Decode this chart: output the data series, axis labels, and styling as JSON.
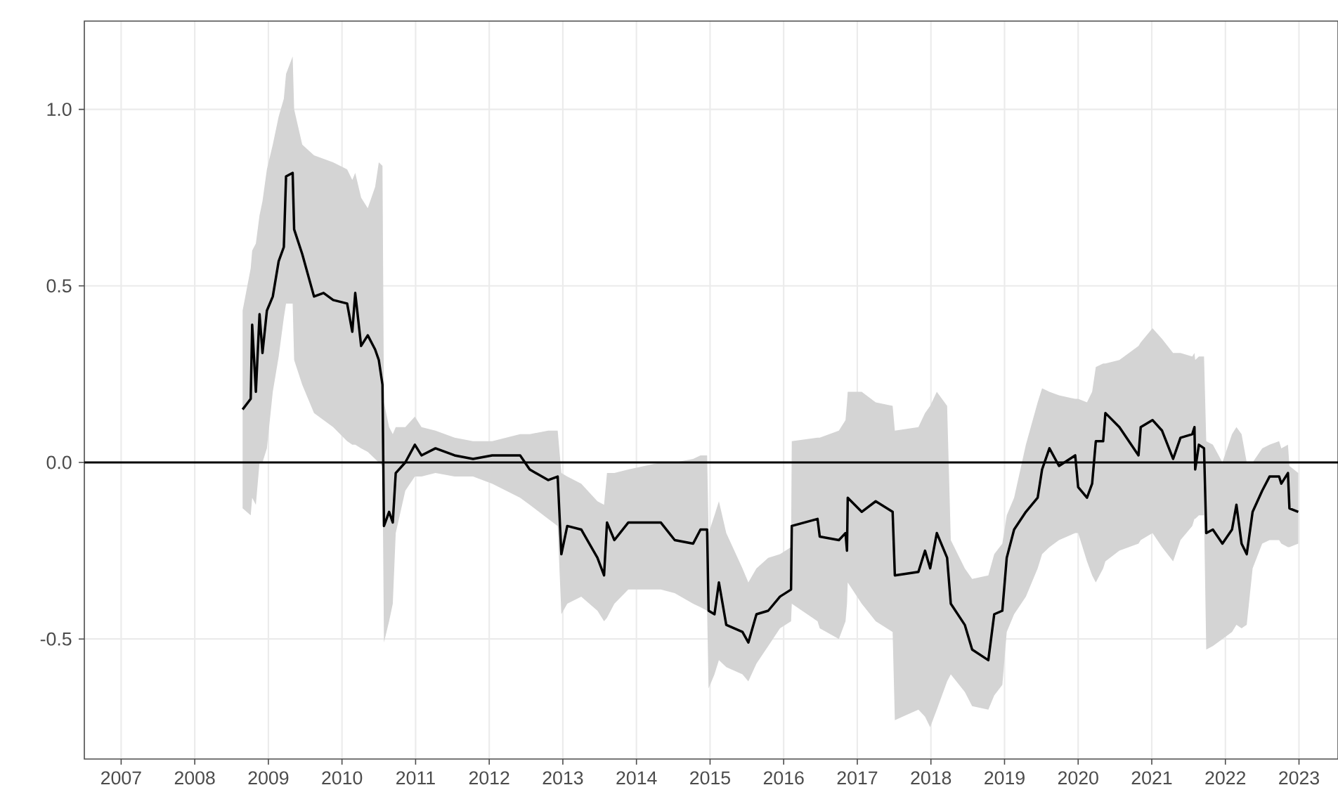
{
  "chart_data": {
    "type": "line",
    "x": [
      2008.65,
      2008.76,
      2008.78,
      2008.83,
      2008.88,
      2008.92,
      2008.98,
      2009.06,
      2009.14,
      2009.21,
      2009.24,
      2009.33,
      2009.35,
      2009.46,
      2009.62,
      2009.75,
      2009.88,
      2010.07,
      2010.14,
      2010.18,
      2010.26,
      2010.35,
      2010.45,
      2010.5,
      2010.55,
      2010.57,
      2010.64,
      2010.69,
      2010.73,
      2010.86,
      2010.99,
      2011.08,
      2011.27,
      2011.53,
      2011.78,
      2012.04,
      2012.42,
      2012.55,
      2012.8,
      2012.93,
      2012.98,
      2013.06,
      2013.25,
      2013.47,
      2013.56,
      2013.6,
      2013.7,
      2013.89,
      2014.33,
      2014.52,
      2014.77,
      2014.87,
      2014.96,
      2014.98,
      2015.06,
      2015.12,
      2015.22,
      2015.44,
      2015.52,
      2015.63,
      2015.79,
      2015.95,
      2016.1,
      2016.11,
      2016.46,
      2016.49,
      2016.75,
      2016.84,
      2016.86,
      2016.87,
      2017.06,
      2017.25,
      2017.48,
      2017.51,
      2017.83,
      2017.92,
      2017.99,
      2018.08,
      2018.22,
      2018.27,
      2018.46,
      2018.56,
      2018.78,
      2018.86,
      2018.97,
      2019.03,
      2019.13,
      2019.29,
      2019.45,
      2019.51,
      2019.61,
      2019.74,
      2019.96,
      2020.0,
      2020.12,
      2020.19,
      2020.24,
      2020.34,
      2020.37,
      2020.56,
      2020.82,
      2020.85,
      2021.01,
      2021.14,
      2021.29,
      2021.39,
      2021.55,
      2021.58,
      2021.59,
      2021.64,
      2021.71,
      2021.74,
      2021.83,
      2021.96,
      2022.09,
      2022.15,
      2022.22,
      2022.29,
      2022.37,
      2022.5,
      2022.6,
      2022.73,
      2022.76,
      2022.85,
      2022.87,
      2022.99
    ],
    "series": [
      {
        "color": "#000000",
        "values": [
          0.15,
          0.18,
          0.39,
          0.2,
          0.42,
          0.31,
          0.43,
          0.47,
          0.57,
          0.61,
          0.81,
          0.82,
          0.66,
          0.59,
          0.47,
          0.48,
          0.46,
          0.45,
          0.37,
          0.48,
          0.33,
          0.36,
          0.32,
          0.29,
          0.22,
          -0.18,
          -0.14,
          -0.17,
          -0.03,
          0.0,
          0.05,
          0.02,
          0.04,
          0.02,
          0.01,
          0.02,
          0.02,
          -0.02,
          -0.05,
          -0.04,
          -0.26,
          -0.18,
          -0.19,
          -0.27,
          -0.32,
          -0.17,
          -0.22,
          -0.17,
          -0.17,
          -0.22,
          -0.23,
          -0.19,
          -0.19,
          -0.42,
          -0.43,
          -0.34,
          -0.46,
          -0.48,
          -0.51,
          -0.43,
          -0.42,
          -0.38,
          -0.36,
          -0.18,
          -0.16,
          -0.21,
          -0.22,
          -0.2,
          -0.25,
          -0.1,
          -0.14,
          -0.11,
          -0.14,
          -0.32,
          -0.31,
          -0.25,
          -0.3,
          -0.2,
          -0.27,
          -0.4,
          -0.46,
          -0.53,
          -0.56,
          -0.43,
          -0.42,
          -0.27,
          -0.19,
          -0.14,
          -0.1,
          -0.02,
          0.04,
          -0.01,
          0.02,
          -0.07,
          -0.1,
          -0.06,
          0.06,
          0.06,
          0.14,
          0.1,
          0.02,
          0.1,
          0.12,
          0.09,
          0.01,
          0.07,
          0.08,
          0.1,
          -0.02,
          0.05,
          0.04,
          -0.2,
          -0.19,
          -0.23,
          -0.19,
          -0.12,
          -0.23,
          -0.26,
          -0.14,
          -0.08,
          -0.04,
          -0.04,
          -0.06,
          -0.03,
          -0.13,
          -0.14
        ],
        "lower": [
          -0.13,
          -0.15,
          -0.1,
          -0.12,
          0.0,
          0.0,
          0.04,
          0.2,
          0.3,
          0.41,
          0.45,
          0.45,
          0.29,
          0.22,
          0.14,
          0.12,
          0.1,
          0.06,
          0.05,
          0.05,
          0.04,
          0.03,
          0.01,
          0.0,
          -0.01,
          -0.51,
          -0.45,
          -0.4,
          -0.2,
          -0.08,
          -0.04,
          -0.04,
          -0.03,
          -0.04,
          -0.04,
          -0.06,
          -0.1,
          -0.12,
          -0.16,
          -0.18,
          -0.43,
          -0.4,
          -0.38,
          -0.42,
          -0.45,
          -0.44,
          -0.4,
          -0.36,
          -0.36,
          -0.37,
          -0.4,
          -0.41,
          -0.42,
          -0.64,
          -0.6,
          -0.56,
          -0.58,
          -0.6,
          -0.62,
          -0.57,
          -0.52,
          -0.47,
          -0.45,
          -0.4,
          -0.45,
          -0.47,
          -0.5,
          -0.45,
          -0.4,
          -0.34,
          -0.4,
          -0.45,
          -0.48,
          -0.73,
          -0.7,
          -0.72,
          -0.75,
          -0.7,
          -0.62,
          -0.6,
          -0.65,
          -0.69,
          -0.7,
          -0.66,
          -0.63,
          -0.48,
          -0.43,
          -0.38,
          -0.3,
          -0.26,
          -0.24,
          -0.22,
          -0.2,
          -0.2,
          -0.28,
          -0.32,
          -0.34,
          -0.3,
          -0.28,
          -0.25,
          -0.23,
          -0.22,
          -0.2,
          -0.24,
          -0.28,
          -0.22,
          -0.18,
          -0.16,
          -0.16,
          -0.15,
          -0.15,
          -0.53,
          -0.52,
          -0.5,
          -0.48,
          -0.46,
          -0.47,
          -0.46,
          -0.3,
          -0.23,
          -0.22,
          -0.22,
          -0.23,
          -0.24,
          -0.24,
          -0.23
        ],
        "upper": [
          0.43,
          0.55,
          0.6,
          0.62,
          0.7,
          0.74,
          0.83,
          0.9,
          0.98,
          1.03,
          1.1,
          1.15,
          1.0,
          0.9,
          0.87,
          0.86,
          0.85,
          0.83,
          0.8,
          0.82,
          0.75,
          0.72,
          0.78,
          0.85,
          0.84,
          0.17,
          0.1,
          0.08,
          0.1,
          0.1,
          0.13,
          0.1,
          0.09,
          0.07,
          0.06,
          0.06,
          0.08,
          0.08,
          0.09,
          0.09,
          -0.03,
          -0.04,
          -0.06,
          -0.11,
          -0.12,
          -0.03,
          -0.03,
          -0.02,
          0.0,
          0.0,
          0.01,
          0.02,
          0.02,
          -0.2,
          -0.15,
          -0.11,
          -0.2,
          -0.3,
          -0.34,
          -0.3,
          -0.27,
          -0.26,
          -0.24,
          0.06,
          0.07,
          0.07,
          0.09,
          0.12,
          0.17,
          0.2,
          0.2,
          0.17,
          0.16,
          0.09,
          0.1,
          0.14,
          0.16,
          0.2,
          0.16,
          -0.22,
          -0.3,
          -0.33,
          -0.32,
          -0.26,
          -0.23,
          -0.15,
          -0.1,
          0.05,
          0.17,
          0.21,
          0.2,
          0.19,
          0.18,
          0.18,
          0.17,
          0.2,
          0.27,
          0.28,
          0.28,
          0.29,
          0.33,
          0.34,
          0.38,
          0.35,
          0.31,
          0.31,
          0.3,
          0.31,
          0.29,
          0.3,
          0.3,
          0.06,
          0.05,
          0.0,
          0.08,
          0.1,
          0.08,
          0.0,
          0.0,
          0.04,
          0.05,
          0.06,
          0.04,
          0.05,
          -0.01,
          -0.03
        ]
      }
    ],
    "xlim": [
      2006.5,
      2023.53
    ],
    "ylim": [
      -0.84,
      1.25
    ],
    "xticks": [
      2007,
      2008,
      2009,
      2010,
      2011,
      2012,
      2013,
      2014,
      2015,
      2016,
      2017,
      2018,
      2019,
      2020,
      2021,
      2022,
      2023
    ],
    "yticks": [
      -0.5,
      {
        "value": 0,
        "label": "0.0"
      },
      0.5,
      {
        "value": 1,
        "label": "1.0"
      }
    ],
    "grid": true,
    "ref_lines": [
      {
        "axis": "y",
        "value": 0,
        "color": "#000000"
      }
    ]
  }
}
